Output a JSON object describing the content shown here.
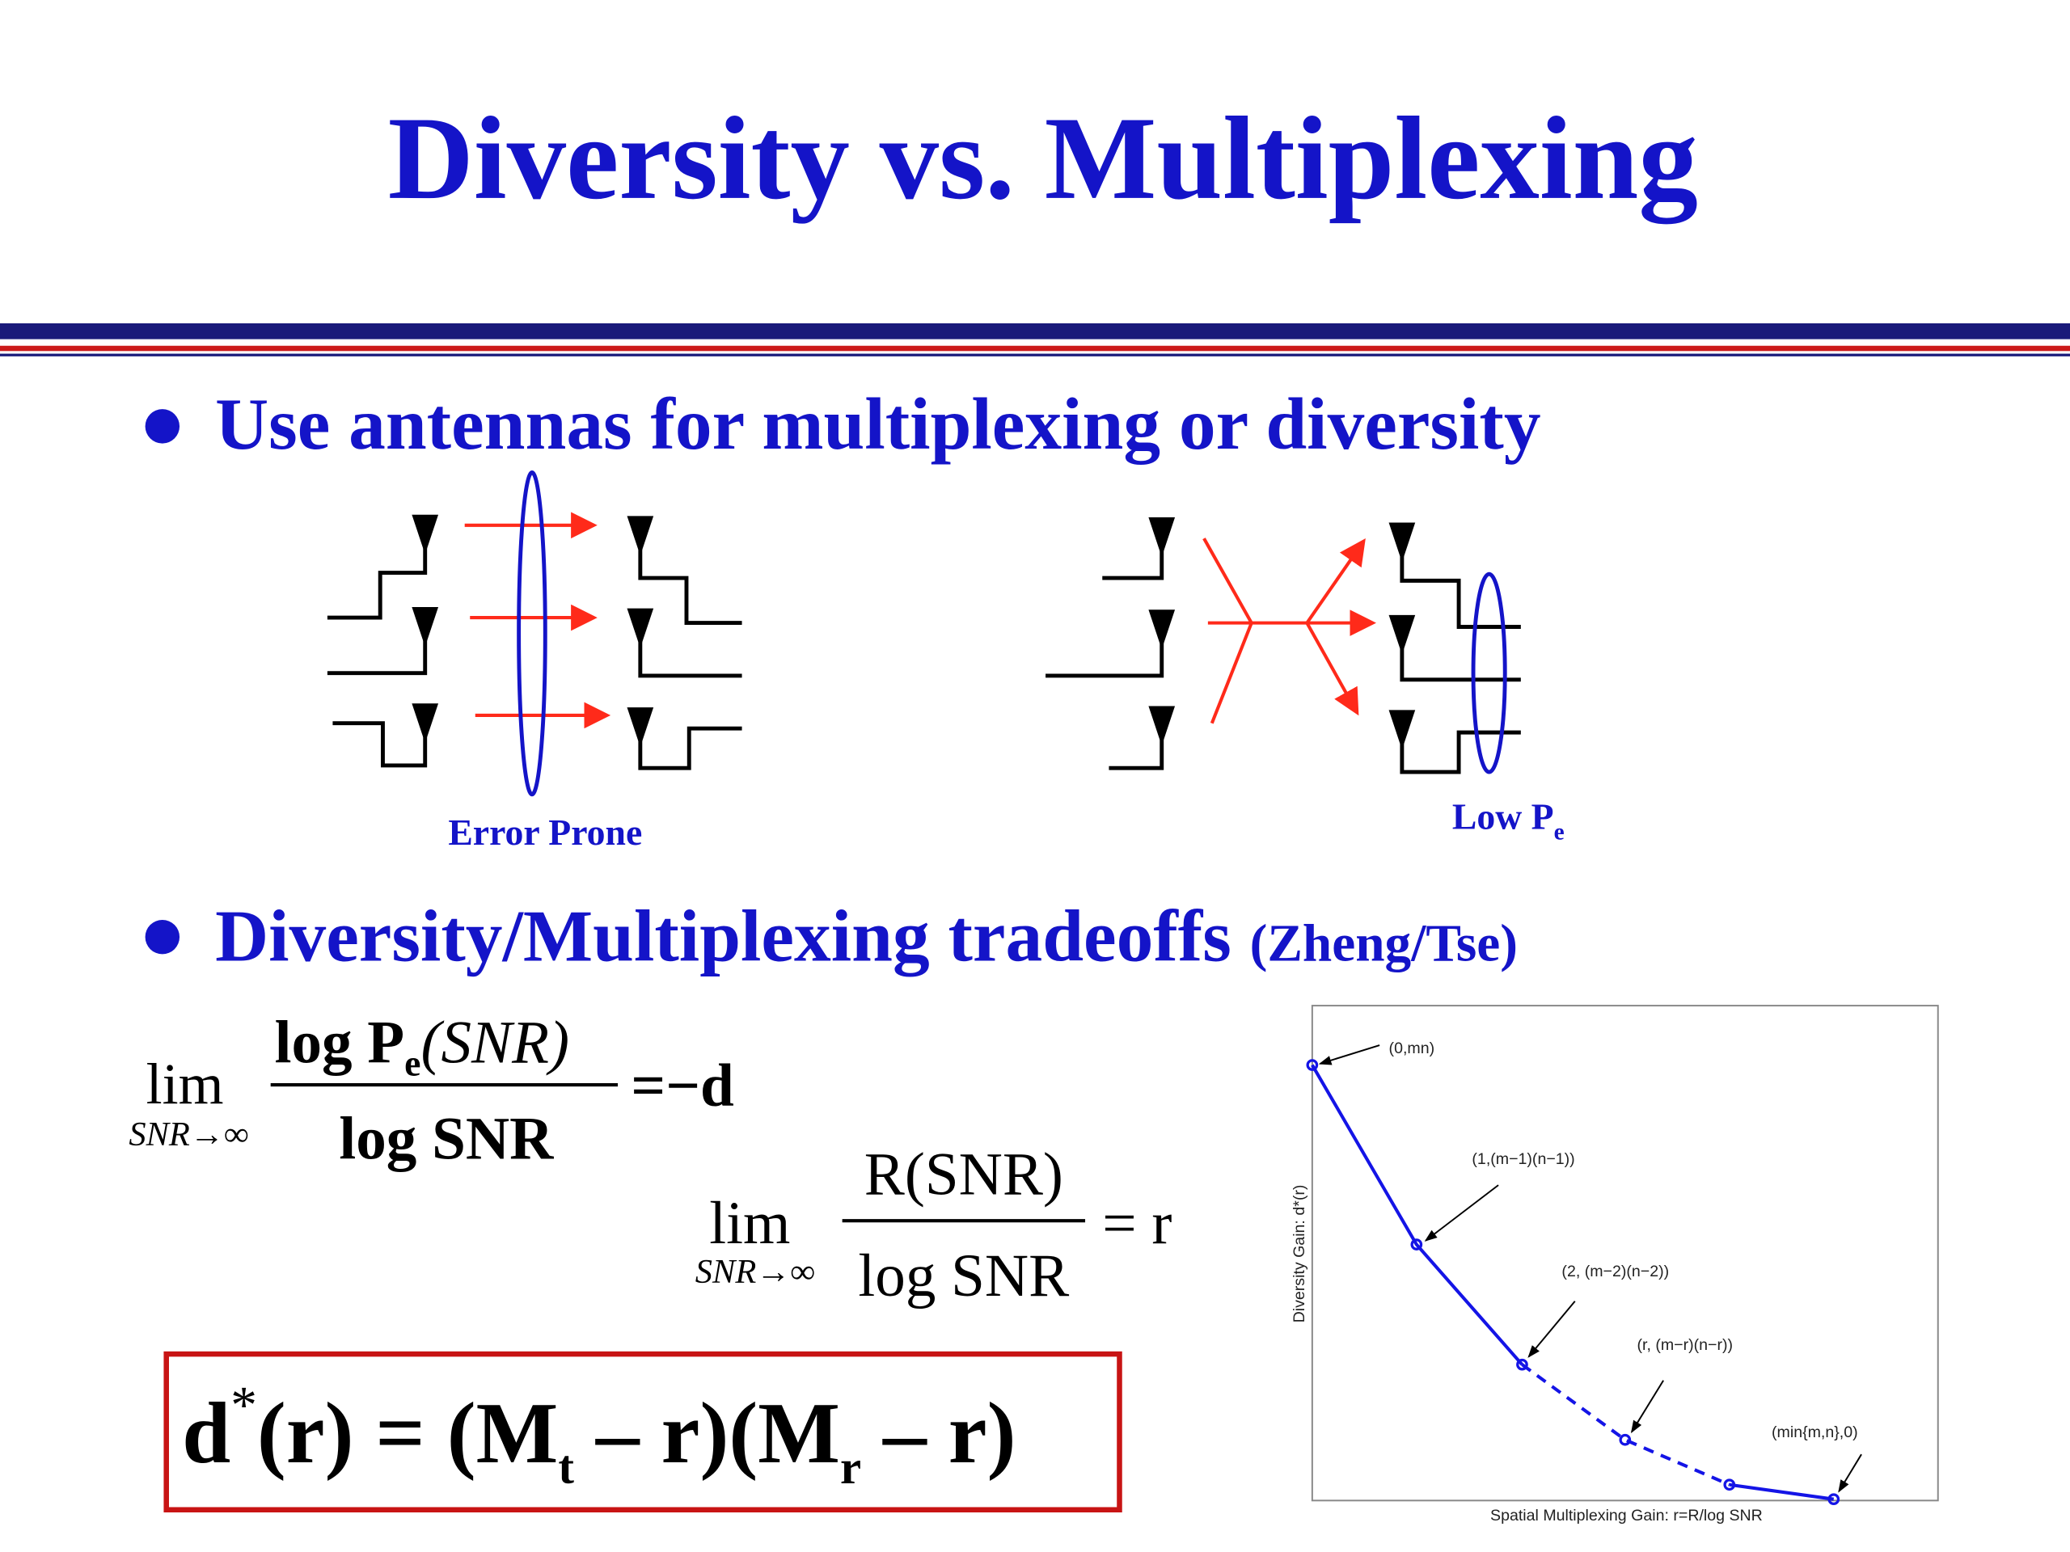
{
  "title": "Diversity vs. Multiplexing",
  "bullets": [
    {
      "text": "Use antennas for multiplexing or diversity"
    },
    {
      "text": "Diversity/Multiplexing tradeoffs",
      "citation": "(Zheng/Tse)"
    }
  ],
  "diagrams": {
    "left_label": "Error Prone",
    "right_label": "Low P",
    "right_label_sub": "e"
  },
  "equations": {
    "diversity": {
      "lim": "lim",
      "limit": "SNR→∞",
      "numerator": "log P",
      "numerator_sub": "e",
      "numerator_arg": "(SNR)",
      "denominator": "log SNR",
      "rhs": "=−d"
    },
    "multiplexing": {
      "lim": "lim",
      "limit": "SNR→∞",
      "numerator": "R(SNR)",
      "denominator": "log SNR",
      "rhs": "= r"
    },
    "tradeoff": {
      "lhs": "d",
      "lhs_sup": "*",
      "part1": "(r) = (M",
      "sub1": "t",
      "part2": " – r)(M",
      "sub2": "r",
      "part3": " – r)"
    }
  },
  "plot": {
    "y_label": "Diversity Gain:   d*(r)",
    "x_label": "Spatial Multiplexing Gain:   r=R/log SNR",
    "points": [
      "(0,mn)",
      "(1,(m−1)(n−1))",
      "(2, (m−2)(n−2))",
      "(r, (m−r)(n−r))",
      "(min{m,n},0)"
    ]
  }
}
